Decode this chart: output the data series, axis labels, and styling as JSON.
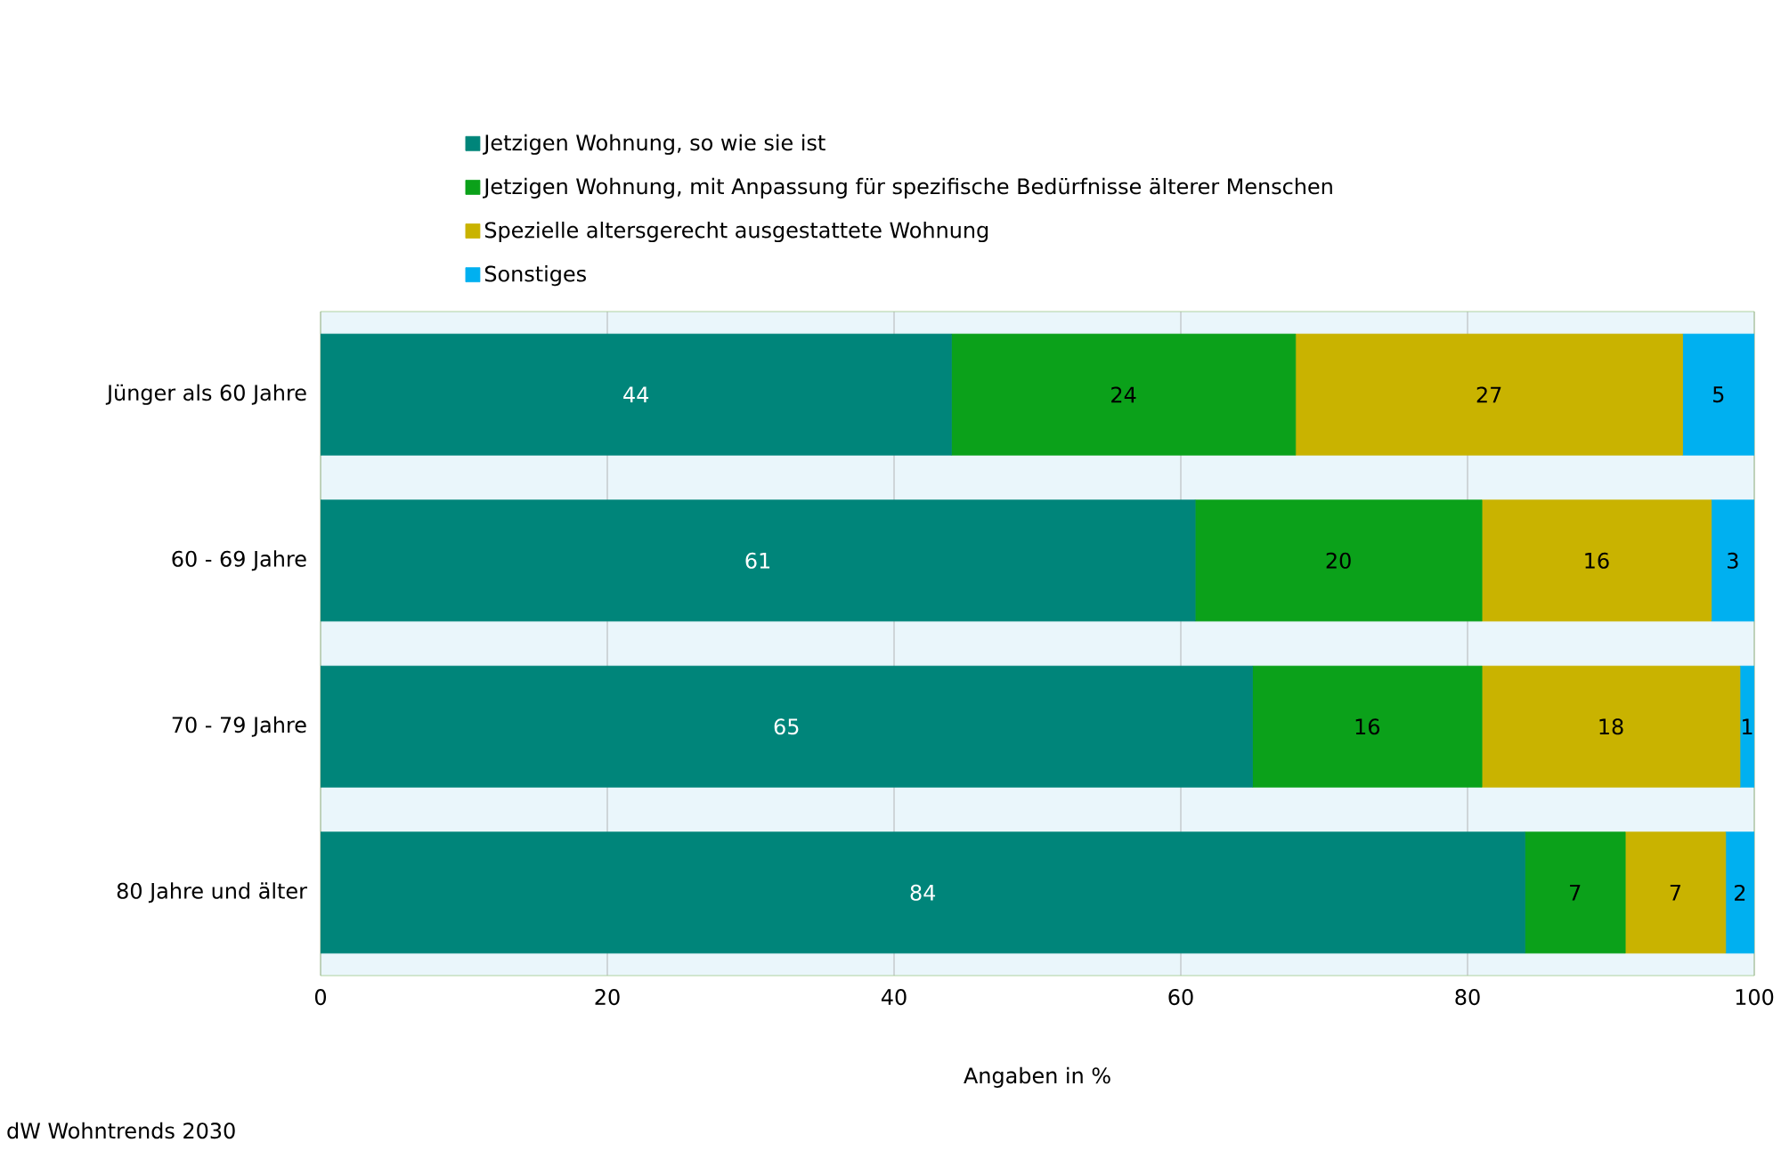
{
  "chart_data": {
    "type": "bar",
    "orientation": "horizontal",
    "stacked": true,
    "data_labels": true,
    "xlabel": "Angaben in %",
    "legend": "top",
    "grid": "x",
    "categories": [
      "Jünger als 60 Jahre",
      "60 - 69 Jahre",
      "70 - 79 Jahre",
      "80 Jahre und älter"
    ],
    "xlim": [
      0,
      100
    ],
    "xticks": [
      0,
      20,
      40,
      60,
      80,
      100
    ],
    "series": [
      {
        "name": "Jetzigen Wohnung, so wie sie ist",
        "color": "#00857a",
        "values": [
          44,
          61,
          65,
          84
        ]
      },
      {
        "name": "Jetzigen Wohnung, mit Anpassung für spezifische Bedürfnisse älterer Menschen",
        "color": "#0ba11a",
        "values": [
          24,
          20,
          16,
          7
        ]
      },
      {
        "name": "Spezielle altersgerecht ausgestattete Wohnung",
        "color": "#c9b300",
        "values": [
          27,
          16,
          18,
          7
        ]
      },
      {
        "name": "Sonstiges",
        "color": "#00b0f0",
        "values": [
          5,
          3,
          1,
          2
        ]
      }
    ],
    "annotations": [
      "dW Wohntrends 2030"
    ]
  }
}
